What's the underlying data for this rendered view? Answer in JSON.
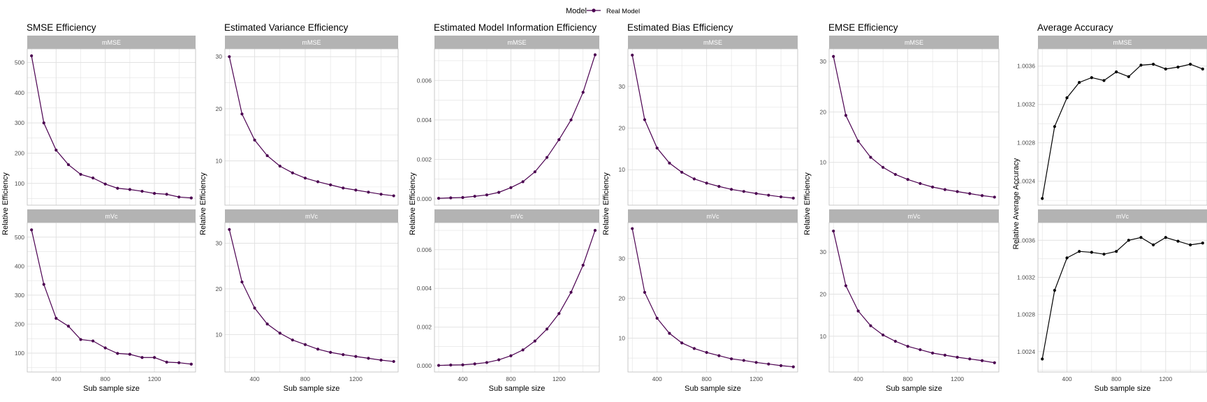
{
  "legend": {
    "title": "Model",
    "entries": [
      "Real Model"
    ]
  },
  "colors": {
    "series": "#4B0050",
    "series_accuracy": "#000000",
    "grid": "#e2e2e2",
    "strip": "#b3b3b3",
    "strip_text": "#ffffff",
    "panel_border": "#bdbdbd"
  },
  "chart_data": [
    {
      "type": "line",
      "title": "SMSE Efficiency",
      "ylabel": "Relative Efficiency",
      "xlabel": "Sub sample size",
      "x": [
        200,
        300,
        400,
        500,
        600,
        700,
        800,
        900,
        1000,
        1100,
        1200,
        1300,
        1400,
        1500
      ],
      "xticks": [
        400,
        800,
        1200
      ],
      "xlim": [
        165,
        1535
      ],
      "series_color": "series",
      "panels": [
        {
          "strip": "mMSE",
          "ylim": [
            28,
            545
          ],
          "yticks": [
            "100",
            "200",
            "300",
            "400",
            "500"
          ],
          "ytick_vals": [
            100,
            200,
            300,
            400,
            500
          ],
          "values": [
            522,
            300,
            210,
            162,
            130,
            118,
            98,
            84,
            80,
            74,
            67,
            64,
            55,
            52
          ]
        },
        {
          "strip": "mVc",
          "ylim": [
            35,
            550
          ],
          "yticks": [
            "100",
            "200",
            "300",
            "400",
            "500"
          ],
          "ytick_vals": [
            100,
            200,
            300,
            400,
            500
          ],
          "values": [
            525,
            337,
            220,
            193,
            147,
            142,
            118,
            99,
            96,
            85,
            85,
            69,
            67,
            62
          ]
        }
      ]
    },
    {
      "type": "line",
      "title": "Estimated Variance Efficiency",
      "ylabel": "Relative Efficiency",
      "xlabel": "Sub sample size",
      "x": [
        200,
        300,
        400,
        500,
        600,
        700,
        800,
        900,
        1000,
        1100,
        1200,
        1300,
        1400,
        1500
      ],
      "xticks": [
        400,
        800,
        1200
      ],
      "xlim": [
        165,
        1535
      ],
      "series_color": "series",
      "panels": [
        {
          "strip": "mMSE",
          "ylim": [
            1.5,
            31.5
          ],
          "yticks": [
            "10",
            "20",
            "30"
          ],
          "ytick_vals": [
            10,
            20,
            30
          ],
          "values": [
            30,
            19,
            14,
            11,
            9,
            7.7,
            6.7,
            6,
            5.4,
            4.8,
            4.4,
            4,
            3.6,
            3.3
          ]
        },
        {
          "strip": "mVc",
          "ylim": [
            1.8,
            34.5
          ],
          "yticks": [
            "10",
            "20",
            "30"
          ],
          "ytick_vals": [
            10,
            20,
            30
          ],
          "values": [
            33,
            21.5,
            15.8,
            12.3,
            10.3,
            8.8,
            7.8,
            6.8,
            6.1,
            5.6,
            5.2,
            4.8,
            4.4,
            4.1
          ]
        }
      ]
    },
    {
      "type": "line",
      "title": "Estimated Model Information Efficiency",
      "ylabel": "Relative Efficiency",
      "xlabel": "Sub sample size",
      "x": [
        200,
        300,
        400,
        500,
        600,
        700,
        800,
        900,
        1000,
        1100,
        1200,
        1300,
        1400,
        1500
      ],
      "xticks": [
        400,
        800,
        1200
      ],
      "xlim": [
        165,
        1535
      ],
      "series_color": "series",
      "panels": [
        {
          "strip": "mMSE",
          "ylim": [
            -0.00032,
            0.0076
          ],
          "yticks": [
            "0.000",
            "0.002",
            "0.004",
            "0.006"
          ],
          "ytick_vals": [
            0,
            0.002,
            0.004,
            0.006
          ],
          "values": [
            3e-05,
            5e-05,
            7e-05,
            0.00013,
            0.0002,
            0.00033,
            0.00057,
            0.00087,
            0.00137,
            0.0021,
            0.003,
            0.004,
            0.0054,
            0.0073
          ]
        },
        {
          "strip": "mVc",
          "ylim": [
            -0.00032,
            0.0074
          ],
          "yticks": [
            "0.000",
            "0.002",
            "0.004",
            "0.006"
          ],
          "ytick_vals": [
            0,
            0.002,
            0.004,
            0.006
          ],
          "values": [
            2e-05,
            4e-05,
            5e-05,
            0.0001,
            0.00017,
            0.00031,
            0.00052,
            0.00082,
            0.00128,
            0.0019,
            0.0027,
            0.0038,
            0.0052,
            0.007
          ]
        }
      ]
    },
    {
      "type": "line",
      "title": "Estimated Bias Efficiency",
      "ylabel": "Relative Efficiency",
      "xlabel": "Sub sample size",
      "x": [
        200,
        300,
        400,
        500,
        600,
        700,
        800,
        900,
        1000,
        1100,
        1200,
        1300,
        1400,
        1500
      ],
      "xticks": [
        400,
        800,
        1200
      ],
      "xlim": [
        165,
        1535
      ],
      "series_color": "series",
      "panels": [
        {
          "strip": "mMSE",
          "ylim": [
            1.5,
            39
          ],
          "yticks": [
            "10",
            "20",
            "30"
          ],
          "ytick_vals": [
            10,
            20,
            30
          ],
          "values": [
            37.5,
            22,
            15.2,
            11.6,
            9.4,
            7.8,
            6.8,
            6,
            5.3,
            4.8,
            4.3,
            3.9,
            3.5,
            3.2
          ]
        },
        {
          "strip": "mVc",
          "ylim": [
            1.5,
            39
          ],
          "yticks": [
            "10",
            "20",
            "30"
          ],
          "ytick_vals": [
            10,
            20,
            30
          ],
          "values": [
            37.5,
            21.5,
            15,
            11.2,
            8.8,
            7.4,
            6.4,
            5.6,
            4.8,
            4.4,
            3.9,
            3.5,
            3.1,
            2.8
          ]
        }
      ]
    },
    {
      "type": "line",
      "title": "EMSE Efficiency",
      "ylabel": "Relative Efficiency",
      "xlabel": "Sub sample size",
      "x": [
        200,
        300,
        400,
        500,
        600,
        700,
        800,
        900,
        1000,
        1100,
        1200,
        1300,
        1400,
        1500
      ],
      "xticks": [
        400,
        800,
        1200
      ],
      "xlim": [
        165,
        1535
      ],
      "series_color": "series",
      "panels": [
        {
          "strip": "mMSE",
          "ylim": [
            1.5,
            32.5
          ],
          "yticks": [
            "10",
            "20",
            "30"
          ],
          "ytick_vals": [
            10,
            20,
            30
          ],
          "values": [
            31,
            19.3,
            14.2,
            11,
            9,
            7.6,
            6.6,
            5.8,
            5.1,
            4.6,
            4.2,
            3.8,
            3.4,
            3.1
          ]
        },
        {
          "strip": "mVc",
          "ylim": [
            1.5,
            37
          ],
          "yticks": [
            "10",
            "20",
            "30"
          ],
          "ytick_vals": [
            10,
            20,
            30
          ],
          "values": [
            35,
            22,
            16,
            12.5,
            10.3,
            8.8,
            7.6,
            6.8,
            6,
            5.5,
            5,
            4.6,
            4.2,
            3.7
          ]
        }
      ]
    },
    {
      "type": "line",
      "title": "Average Accuracy",
      "ylabel": "Relative Average Accuracy",
      "xlabel": "Sub sample size",
      "x": [
        200,
        300,
        400,
        500,
        600,
        700,
        800,
        900,
        1000,
        1100,
        1200,
        1300,
        1400,
        1500
      ],
      "xticks": [
        400,
        800,
        1200
      ],
      "xlim": [
        165,
        1535
      ],
      "series_color": "series_accuracy",
      "panels": [
        {
          "strip": "mMSE",
          "ylim": [
            1.00215,
            1.00378
          ],
          "yticks": [
            "1.0024",
            "1.0028",
            "1.0032",
            "1.0036"
          ],
          "ytick_vals": [
            1.0024,
            1.0028,
            1.0032,
            1.0036
          ],
          "values": [
            1.00222,
            1.00297,
            1.00327,
            1.00343,
            1.00348,
            1.00345,
            1.00354,
            1.00349,
            1.00361,
            1.00362,
            1.00357,
            1.00359,
            1.00362,
            1.00357
          ]
        },
        {
          "strip": "mVc",
          "ylim": [
            1.00218,
            1.00379
          ],
          "yticks": [
            "1.0024",
            "1.0028",
            "1.0032",
            "1.0036"
          ],
          "ytick_vals": [
            1.0024,
            1.0028,
            1.0032,
            1.0036
          ],
          "values": [
            1.00232,
            1.00306,
            1.00341,
            1.00348,
            1.00347,
            1.00345,
            1.00348,
            1.0036,
            1.00363,
            1.00355,
            1.00363,
            1.00359,
            1.00355,
            1.00357
          ]
        }
      ]
    }
  ]
}
